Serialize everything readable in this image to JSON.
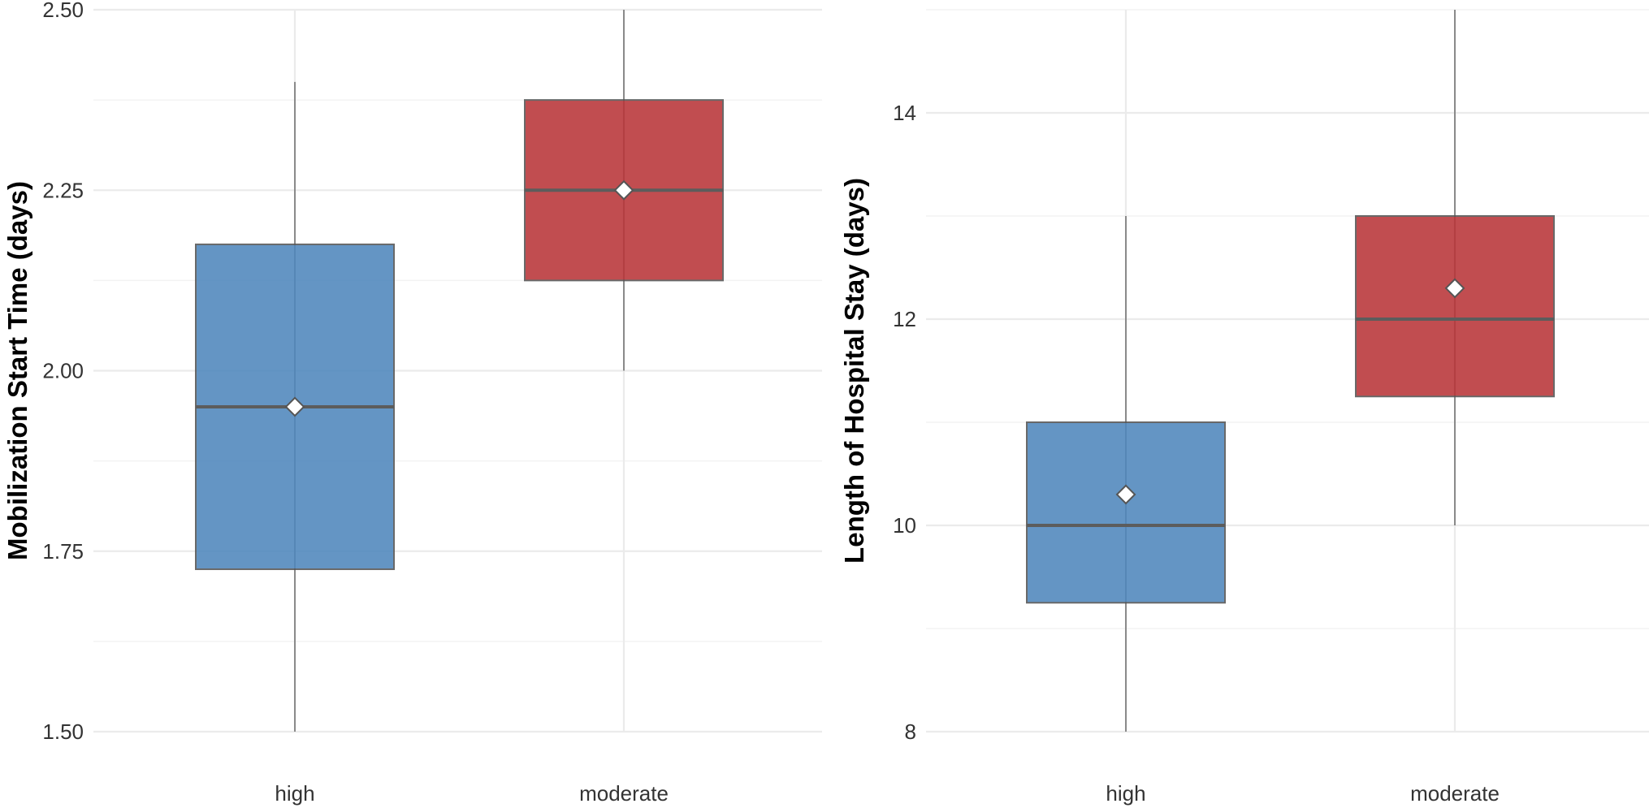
{
  "colors": {
    "high": "#4f87bd",
    "moderate": "#b93539",
    "grid": "#ebebeb"
  },
  "chart_data": [
    {
      "type": "box",
      "ylabel": "Mobilization Start Time (days)",
      "xlabel": "",
      "categories": [
        "high",
        "moderate"
      ],
      "ylim": [
        1.5,
        2.5
      ],
      "yticks": [
        1.5,
        1.75,
        2.0,
        2.25,
        2.5
      ],
      "ytick_labels": [
        "1.50",
        "1.75",
        "2.00",
        "2.25",
        "2.50"
      ],
      "grid": true,
      "boxes": [
        {
          "category": "high",
          "whisker_low": 1.5,
          "q1": 1.725,
          "median": 1.95,
          "q3": 2.175,
          "whisker_high": 2.4,
          "mean": 1.95
        },
        {
          "category": "moderate",
          "whisker_low": 2.0,
          "q1": 2.125,
          "median": 2.25,
          "q3": 2.375,
          "whisker_high": 2.5,
          "mean": 2.25
        }
      ]
    },
    {
      "type": "box",
      "ylabel": "Length of Hospital Stay (days)",
      "xlabel": "",
      "categories": [
        "high",
        "moderate"
      ],
      "ylim": [
        8,
        15
      ],
      "yticks": [
        8,
        10,
        12,
        14
      ],
      "ytick_labels": [
        "8",
        "10",
        "12",
        "14"
      ],
      "grid": true,
      "boxes": [
        {
          "category": "high",
          "whisker_low": 8,
          "q1": 9.25,
          "median": 10,
          "q3": 11,
          "whisker_high": 13,
          "mean": 10.3
        },
        {
          "category": "moderate",
          "whisker_low": 10,
          "q1": 11.25,
          "median": 12,
          "q3": 13,
          "whisker_high": 15,
          "mean": 12.3
        }
      ]
    }
  ]
}
